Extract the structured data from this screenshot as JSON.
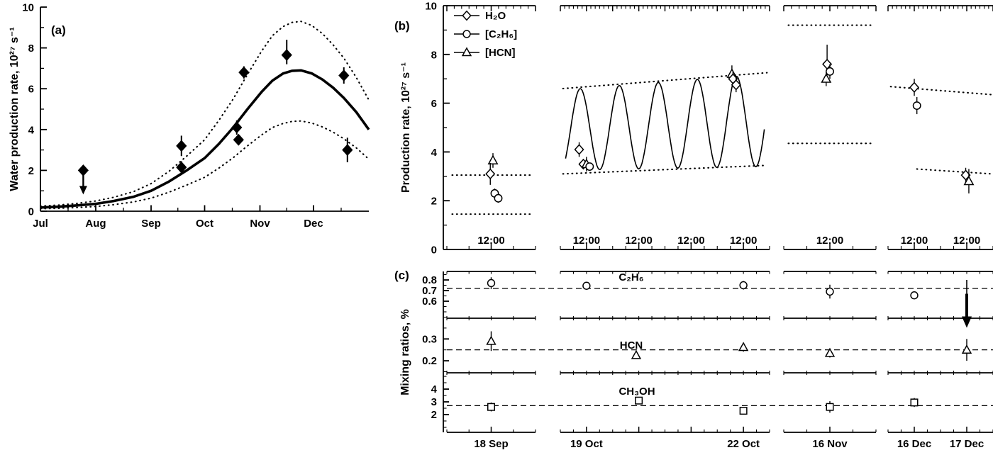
{
  "figure": {
    "panel_a": {
      "label": "(a)",
      "ylabel": "Water production rate, 10²⁷ s⁻¹"
    },
    "panel_b": {
      "label": "(b)",
      "ylabel": "Production rate, 10²⁷ s⁻¹",
      "legend": [
        {
          "species": "h2o",
          "marker": "diamond",
          "label": "H₂O"
        },
        {
          "species": "c2h6",
          "marker": "circle",
          "label": "[C₂H₆]"
        },
        {
          "species": "hcn",
          "marker": "triangle",
          "label": "[HCN]"
        }
      ]
    },
    "panel_c": {
      "label": "(c)",
      "ylabel": "Mixing ratios, %"
    }
  },
  "chart_data": [
    {
      "id": "panel-a",
      "type": "line",
      "ylabel": "Water production rate, 10²⁷ s⁻¹",
      "ylim": [
        0,
        10
      ],
      "yticks": [
        0,
        2,
        4,
        6,
        8,
        10
      ],
      "xlim_days": [
        0,
        184
      ],
      "month_ticks": [
        {
          "label": "Jul",
          "day": 0
        },
        {
          "label": "Aug",
          "day": 31
        },
        {
          "label": "Sep",
          "day": 62
        },
        {
          "label": "Oct",
          "day": 92
        },
        {
          "label": "Nov",
          "day": 123
        },
        {
          "label": "Dec",
          "day": 153
        }
      ],
      "series": [
        {
          "name": "model",
          "style": "solid",
          "x": [
            0,
            10,
            20,
            31,
            41,
            52,
            62,
            72,
            82,
            92,
            100,
            108,
            116,
            124,
            130,
            136,
            141,
            146,
            152,
            158,
            164,
            170,
            177,
            184
          ],
          "y": [
            0.18,
            0.22,
            0.28,
            0.36,
            0.5,
            0.7,
            1.0,
            1.45,
            2.0,
            2.6,
            3.3,
            4.1,
            5.0,
            5.85,
            6.4,
            6.75,
            6.88,
            6.9,
            6.75,
            6.45,
            6.05,
            5.55,
            4.85,
            4.0
          ]
        },
        {
          "name": "model_upper",
          "style": "dotted",
          "x": [
            0,
            10,
            20,
            31,
            41,
            52,
            62,
            72,
            82,
            92,
            100,
            108,
            116,
            124,
            130,
            136,
            141,
            146,
            152,
            158,
            164,
            170,
            177,
            184
          ],
          "y": [
            0.25,
            0.3,
            0.38,
            0.5,
            0.68,
            0.95,
            1.35,
            1.95,
            2.7,
            3.5,
            4.45,
            5.5,
            6.7,
            7.85,
            8.6,
            9.05,
            9.25,
            9.3,
            9.1,
            8.7,
            8.15,
            7.5,
            6.55,
            5.45
          ]
        },
        {
          "name": "model_lower",
          "style": "dotted",
          "x": [
            0,
            10,
            20,
            31,
            41,
            52,
            62,
            72,
            82,
            92,
            100,
            108,
            116,
            124,
            130,
            136,
            141,
            146,
            152,
            158,
            164,
            170,
            177,
            184
          ],
          "y": [
            0.12,
            0.14,
            0.18,
            0.23,
            0.32,
            0.45,
            0.64,
            0.93,
            1.28,
            1.66,
            2.11,
            2.62,
            3.2,
            3.74,
            4.1,
            4.3,
            4.4,
            4.42,
            4.32,
            4.13,
            3.87,
            3.55,
            3.1,
            2.55
          ]
        }
      ],
      "points": [
        {
          "day": 24,
          "y": 2.0,
          "upper_limit": true
        },
        {
          "day": 79,
          "y": 3.2,
          "err": 0.5
        },
        {
          "day": 79,
          "y": 2.15,
          "err": 0.3
        },
        {
          "day": 110,
          "y": 4.1,
          "err": 0.35
        },
        {
          "day": 111,
          "y": 3.5,
          "err": 0.25
        },
        {
          "day": 114,
          "y": 6.8,
          "err": 0.3
        },
        {
          "day": 138,
          "y": 7.65,
          "err_up": 0.75,
          "err_dn": 0.45
        },
        {
          "day": 170,
          "y": 6.65,
          "err": 0.4
        },
        {
          "day": 172,
          "y": 3.0,
          "err": 0.6
        }
      ]
    },
    {
      "id": "panel-b",
      "type": "broken-time-series",
      "ylabel": "Production rate, 10²⁷ s⁻¹",
      "ylim": [
        0,
        10
      ],
      "yticks": [
        0,
        2,
        4,
        6,
        8,
        10
      ],
      "time_tick_label": "12:00",
      "marker_map": {
        "h2o": "diamond",
        "c2h6": "circle",
        "hcn": "triangle"
      },
      "segments": [
        {
          "days": 1,
          "noon_ticks": [
            0.5
          ],
          "dotted": [
            {
              "x": [
                0.06,
                0.94
              ],
              "y": [
                3.05,
                3.05
              ]
            },
            {
              "x": [
                0.06,
                0.94
              ],
              "y": [
                1.45,
                1.45
              ]
            }
          ],
          "points": [
            {
              "species": "hcn",
              "t": 0.52,
              "y": 3.65,
              "err": 0.3
            },
            {
              "species": "h2o",
              "t": 0.49,
              "y": 3.1,
              "err": 0.45
            },
            {
              "species": "c2h6",
              "t": 0.54,
              "y": 2.3,
              "err": 0.2
            },
            {
              "species": "c2h6",
              "t": 0.58,
              "y": 2.1,
              "err": 0.18
            }
          ]
        },
        {
          "days": 4,
          "noon_ticks": [
            0.5,
            1.5,
            2.5,
            3.5
          ],
          "dotted": [
            {
              "x": [
                0.05,
                3.95
              ],
              "y": [
                6.6,
                7.25
              ]
            },
            {
              "x": [
                0.05,
                3.95
              ],
              "y": [
                3.1,
                3.45
              ]
            }
          ],
          "sinusoid": {
            "t0": 0.1,
            "t1": 3.9,
            "period": 0.746,
            "peak_t": 0.38,
            "mean0": 4.9,
            "mean1": 5.3,
            "amp0": 1.65,
            "amp1": 1.9
          },
          "points": [
            {
              "species": "h2o",
              "t": 0.36,
              "y": 4.1,
              "err": 0.3
            },
            {
              "species": "h2o",
              "t": 0.44,
              "y": 3.5,
              "err": 0.2
            },
            {
              "species": "hcn",
              "t": 0.5,
              "y": 3.5,
              "err": 0.3
            },
            {
              "species": "c2h6",
              "t": 0.56,
              "y": 3.4,
              "err": 0.15
            },
            {
              "species": "hcn",
              "t": 3.28,
              "y": 7.2,
              "err": 0.35
            },
            {
              "species": "h2o",
              "t": 3.3,
              "y": 7.0,
              "err": 0.3
            },
            {
              "species": "h2o",
              "t": 3.36,
              "y": 6.75,
              "err": 0.3
            }
          ]
        },
        {
          "days": 1,
          "noon_ticks": [
            0.5
          ],
          "dotted": [
            {
              "x": [
                0.05,
                0.95
              ],
              "y": [
                9.2,
                9.2
              ]
            },
            {
              "x": [
                0.05,
                0.95
              ],
              "y": [
                4.35,
                4.35
              ]
            }
          ],
          "points": [
            {
              "species": "h2o",
              "t": 0.47,
              "y": 7.6,
              "err_up": 0.8,
              "err_dn": 0.45
            },
            {
              "species": "c2h6",
              "t": 0.5,
              "y": 7.3,
              "err": 0.3
            },
            {
              "species": "hcn",
              "t": 0.46,
              "y": 7.0,
              "err": 0.3
            }
          ]
        },
        {
          "days": 2,
          "noon_ticks": [
            0.5,
            1.5
          ],
          "dotted": [
            {
              "x": [
                0.05,
                1.98
              ],
              "y": [
                6.68,
                6.35
              ]
            },
            {
              "x": [
                0.55,
                1.98
              ],
              "y": [
                3.3,
                3.1
              ]
            }
          ],
          "points": [
            {
              "species": "h2o",
              "t": 0.5,
              "y": 6.65,
              "err": 0.35
            },
            {
              "species": "c2h6",
              "t": 0.55,
              "y": 5.9,
              "err": 0.35
            },
            {
              "species": "h2o",
              "t": 1.48,
              "y": 3.05,
              "err": 0.3
            },
            {
              "species": "hcn",
              "t": 1.54,
              "y": 2.8,
              "err": 0.5
            }
          ]
        }
      ]
    },
    {
      "id": "panel-c",
      "type": "broken-mixing-ratios",
      "ylabel": "Mixing ratios, %",
      "date_ticks": [
        {
          "label": "18 Sep",
          "seg": 0,
          "t": 0.5
        },
        {
          "label": "19 Oct",
          "seg": 1,
          "t": 0.5
        },
        {
          "label": "22 Oct",
          "seg": 1,
          "t": 3.5
        },
        {
          "label": "16 Nov",
          "seg": 2,
          "t": 0.5
        },
        {
          "label": "16 Dec",
          "seg": 3,
          "t": 0.5
        },
        {
          "label": "17 Dec",
          "seg": 3,
          "t": 1.5
        }
      ],
      "subpanels": [
        {
          "species": "c2h6",
          "title": "C₂H₆",
          "marker": "circle",
          "ylim": [
            0.44,
            0.88
          ],
          "yticks": [
            0.6,
            0.7,
            0.8
          ],
          "dashed_y": 0.72,
          "points": [
            {
              "seg": 0,
              "t": 0.5,
              "y": 0.77,
              "err": 0.055
            },
            {
              "seg": 1,
              "t": 0.5,
              "y": 0.745,
              "err": 0.02
            },
            {
              "seg": 1,
              "t": 3.5,
              "y": 0.75,
              "err": 0.04
            },
            {
              "seg": 2,
              "t": 0.5,
              "y": 0.69,
              "err": 0.065
            },
            {
              "seg": 3,
              "t": 0.5,
              "y": 0.655,
              "err": 0.025
            },
            {
              "seg": 3,
              "t": 1.5,
              "y": 0.67,
              "arrow_top": 0.8,
              "upper_limit": true
            }
          ]
        },
        {
          "species": "hcn",
          "title": "HCN",
          "marker": "triangle",
          "ylim": [
            0.145,
            0.395
          ],
          "yticks": [
            0.2,
            0.3
          ],
          "dashed_y": 0.25,
          "points": [
            {
              "seg": 0,
              "t": 0.5,
              "y": 0.29,
              "err": 0.045
            },
            {
              "seg": 1,
              "t": 1.45,
              "y": 0.225,
              "err": 0.015
            },
            {
              "seg": 1,
              "t": 3.5,
              "y": 0.262,
              "err": 0.02
            },
            {
              "seg": 2,
              "t": 0.5,
              "y": 0.235,
              "err": 0.02
            },
            {
              "seg": 3,
              "t": 1.5,
              "y": 0.25,
              "err": 0.05
            }
          ]
        },
        {
          "species": "ch3oh",
          "title": "CH₃OH",
          "marker": "square",
          "ylim": [
            0.61,
            5.28
          ],
          "yticks": [
            2,
            3,
            4
          ],
          "dashed_y": 2.7,
          "points": [
            {
              "seg": 0,
              "t": 0.5,
              "y": 2.6,
              "err": 0.35
            },
            {
              "seg": 1,
              "t": 1.5,
              "y": 3.1,
              "err": 0.25
            },
            {
              "seg": 1,
              "t": 3.5,
              "y": 2.3,
              "err": 0.25
            },
            {
              "seg": 2,
              "t": 0.5,
              "y": 2.6,
              "err": 0.45
            },
            {
              "seg": 3,
              "t": 0.5,
              "y": 2.95,
              "err": 0.35
            }
          ]
        }
      ]
    }
  ]
}
